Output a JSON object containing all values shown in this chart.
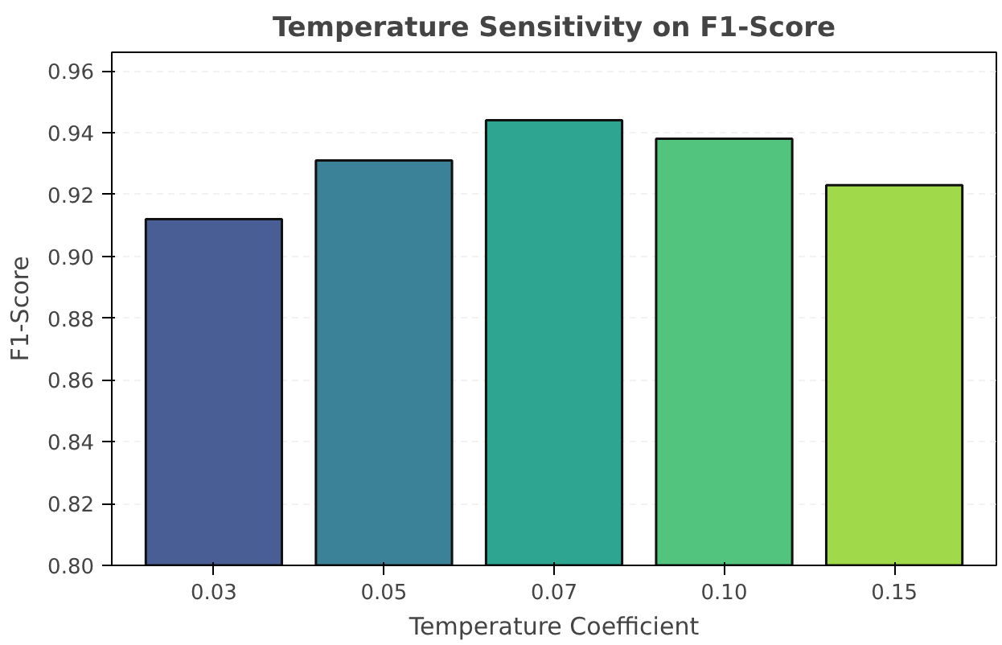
{
  "chart_data": {
    "type": "bar",
    "title": "Temperature Sensitivity on F1-Score",
    "xlabel": "Temperature Coefficient",
    "ylabel": "F1-Score",
    "categories": [
      "0.03",
      "0.05",
      "0.07",
      "0.10",
      "0.15"
    ],
    "values": [
      0.912,
      0.931,
      0.944,
      0.938,
      0.923
    ],
    "colors": [
      "#4a5e96",
      "#3b8197",
      "#2ea591",
      "#52c47d",
      "#a0d94a"
    ],
    "ylim": [
      0.8,
      0.966
    ],
    "yticks": [
      {
        "value": 0.8,
        "label": "0.80"
      },
      {
        "value": 0.82,
        "label": "0.82"
      },
      {
        "value": 0.84,
        "label": "0.84"
      },
      {
        "value": 0.86,
        "label": "0.86"
      },
      {
        "value": 0.88,
        "label": "0.88"
      },
      {
        "value": 0.9,
        "label": "0.90"
      },
      {
        "value": 0.92,
        "label": "0.92"
      },
      {
        "value": 0.94,
        "label": "0.94"
      },
      {
        "value": 0.96,
        "label": "0.96"
      }
    ],
    "grid": "y"
  }
}
